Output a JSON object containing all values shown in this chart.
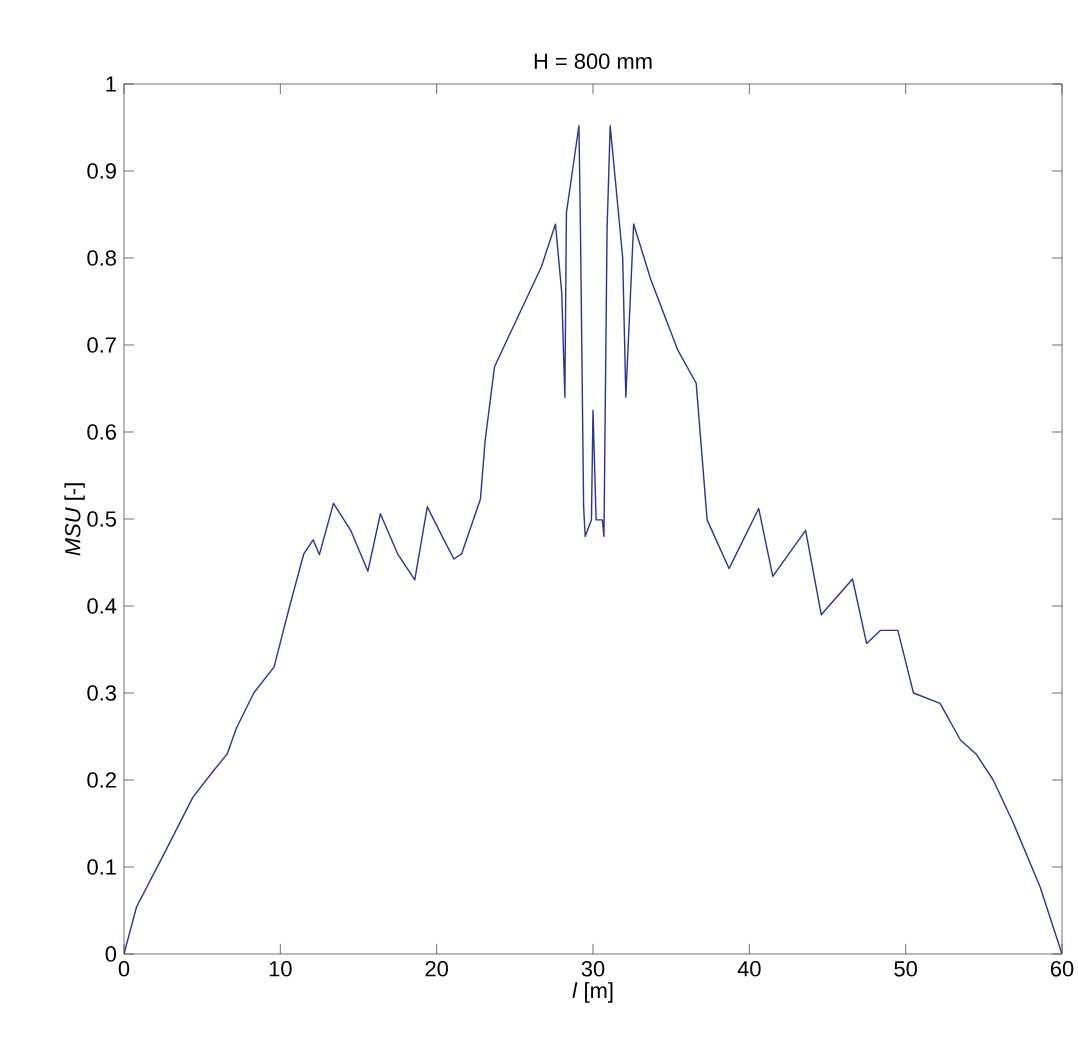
{
  "chart_data": {
    "type": "line",
    "title": "H = 800 mm",
    "xlabel": "*l* [m]",
    "ylabel": "*MSU* [-]",
    "xlim": [
      0,
      60
    ],
    "ylim": [
      0,
      1
    ],
    "xticks": [
      0,
      10,
      20,
      30,
      40,
      50,
      60
    ],
    "yticks": [
      0,
      0.1,
      0.2,
      0.3,
      0.4,
      0.5,
      0.6,
      0.7,
      0.8,
      0.9,
      1
    ],
    "series": [
      {
        "color": "#2a3593",
        "x": [
          0,
          0.8,
          2.7,
          4.4,
          5.7,
          6.6,
          7.2,
          8.3,
          9.6,
          10.6,
          10.9,
          11.5,
          12.1,
          12.5,
          13.4,
          14.5,
          15.6,
          16.4,
          17.5,
          18.6,
          19.4,
          20.1,
          21.1,
          21.6,
          22.8,
          23.1,
          23.7,
          25.5,
          26.7,
          27.6,
          28.0,
          28.2,
          28.3,
          29.1,
          29.2,
          29.4,
          29.5,
          29.9,
          30.0,
          30.2,
          30.6,
          30.7,
          30.9,
          31.1,
          31.9,
          32.1,
          32.6,
          33.7,
          35.4,
          36.6,
          37.3,
          38.7,
          40.6,
          41.5,
          43.6,
          44.6,
          46.6,
          47.5,
          48.4,
          49.5,
          50.5,
          52.2,
          53.5,
          54.5,
          55.6,
          56.9,
          58.6,
          60
        ],
        "values": [
          0,
          0.054,
          0.12,
          0.18,
          0.21,
          0.23,
          0.26,
          0.3,
          0.33,
          0.4,
          0.42,
          0.46,
          0.476,
          0.459,
          0.518,
          0.487,
          0.44,
          0.506,
          0.46,
          0.43,
          0.514,
          0.489,
          0.454,
          0.46,
          0.523,
          0.59,
          0.675,
          0.744,
          0.79,
          0.839,
          0.76,
          0.64,
          0.852,
          0.952,
          0.83,
          0.514,
          0.48,
          0.499,
          0.625,
          0.499,
          0.499,
          0.48,
          0.833,
          0.952,
          0.8,
          0.64,
          0.839,
          0.775,
          0.695,
          0.656,
          0.499,
          0.443,
          0.512,
          0.434,
          0.487,
          0.39,
          0.431,
          0.357,
          0.372,
          0.372,
          0.3,
          0.288,
          0.246,
          0.23,
          0.2,
          0.15,
          0.077,
          0
        ]
      }
    ]
  }
}
